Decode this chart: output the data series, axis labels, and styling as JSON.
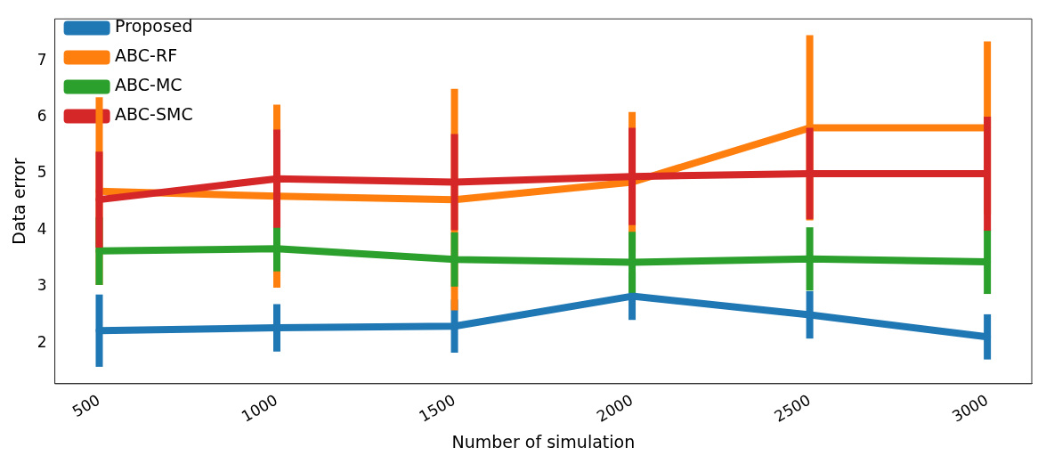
{
  "chart_data": {
    "type": "line",
    "xlabel": "Number of simulation",
    "ylabel": "Data error",
    "x": [
      500,
      1000,
      1500,
      2000,
      2500,
      3000
    ],
    "series": [
      {
        "name": "Proposed",
        "color": "#1f77b4",
        "values": [
          2.22,
          2.27,
          2.3,
          2.83,
          2.5,
          2.11
        ],
        "errors": [
          0.64,
          0.42,
          0.47,
          0.42,
          0.42,
          0.4
        ]
      },
      {
        "name": "ABC-RF",
        "color": "#ff7f0e",
        "values": [
          4.69,
          4.6,
          4.54,
          4.85,
          5.81,
          5.81
        ],
        "errors": [
          1.66,
          1.62,
          1.96,
          1.24,
          1.64,
          1.53
        ]
      },
      {
        "name": "ABC-MC",
        "color": "#2ca02c",
        "values": [
          3.63,
          3.67,
          3.48,
          3.43,
          3.49,
          3.44
        ],
        "errors": [
          0.6,
          0.4,
          0.48,
          0.54,
          0.56,
          0.57
        ]
      },
      {
        "name": "ABC-SMC",
        "color": "#d62728",
        "values": [
          4.54,
          4.91,
          4.85,
          4.95,
          5.0,
          5.0
        ],
        "errors": [
          0.85,
          0.87,
          0.85,
          0.86,
          0.81,
          1.01
        ]
      }
    ],
    "xlim": [
      375,
      3125
    ],
    "xticks": [
      500,
      1000,
      1500,
      2000,
      2500,
      3000
    ],
    "ylim": [
      1.28,
      7.74
    ],
    "yticks": [
      2,
      3,
      4,
      5,
      6,
      7
    ],
    "grid": false,
    "legend": "top left",
    "marker": "none",
    "line_style": "solid"
  }
}
